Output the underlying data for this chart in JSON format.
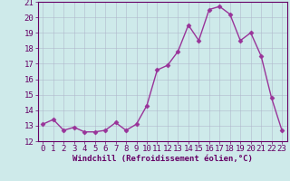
{
  "x": [
    0,
    1,
    2,
    3,
    4,
    5,
    6,
    7,
    8,
    9,
    10,
    11,
    12,
    13,
    14,
    15,
    16,
    17,
    18,
    19,
    20,
    21,
    22,
    23
  ],
  "y": [
    13.1,
    13.4,
    12.7,
    12.9,
    12.6,
    12.6,
    12.7,
    13.2,
    12.7,
    13.1,
    14.3,
    16.6,
    16.9,
    17.8,
    19.5,
    18.5,
    20.5,
    20.7,
    20.2,
    18.5,
    19.0,
    17.5,
    14.8,
    12.7
  ],
  "line_color": "#993399",
  "marker": "D",
  "marker_size": 2.5,
  "bg_color": "#ceeaea",
  "grid_color": "#b0b8cc",
  "xlabel": "Windchill (Refroidissement éolien,°C)",
  "ylim": [
    12,
    21
  ],
  "xlim": [
    -0.5,
    23.5
  ],
  "yticks": [
    12,
    13,
    14,
    15,
    16,
    17,
    18,
    19,
    20,
    21
  ],
  "xticks": [
    0,
    1,
    2,
    3,
    4,
    5,
    6,
    7,
    8,
    9,
    10,
    11,
    12,
    13,
    14,
    15,
    16,
    17,
    18,
    19,
    20,
    21,
    22,
    23
  ],
  "xlabel_fontsize": 6.5,
  "tick_fontsize": 6.5,
  "line_width": 1.0,
  "axis_color": "#660066",
  "spine_color": "#660066"
}
